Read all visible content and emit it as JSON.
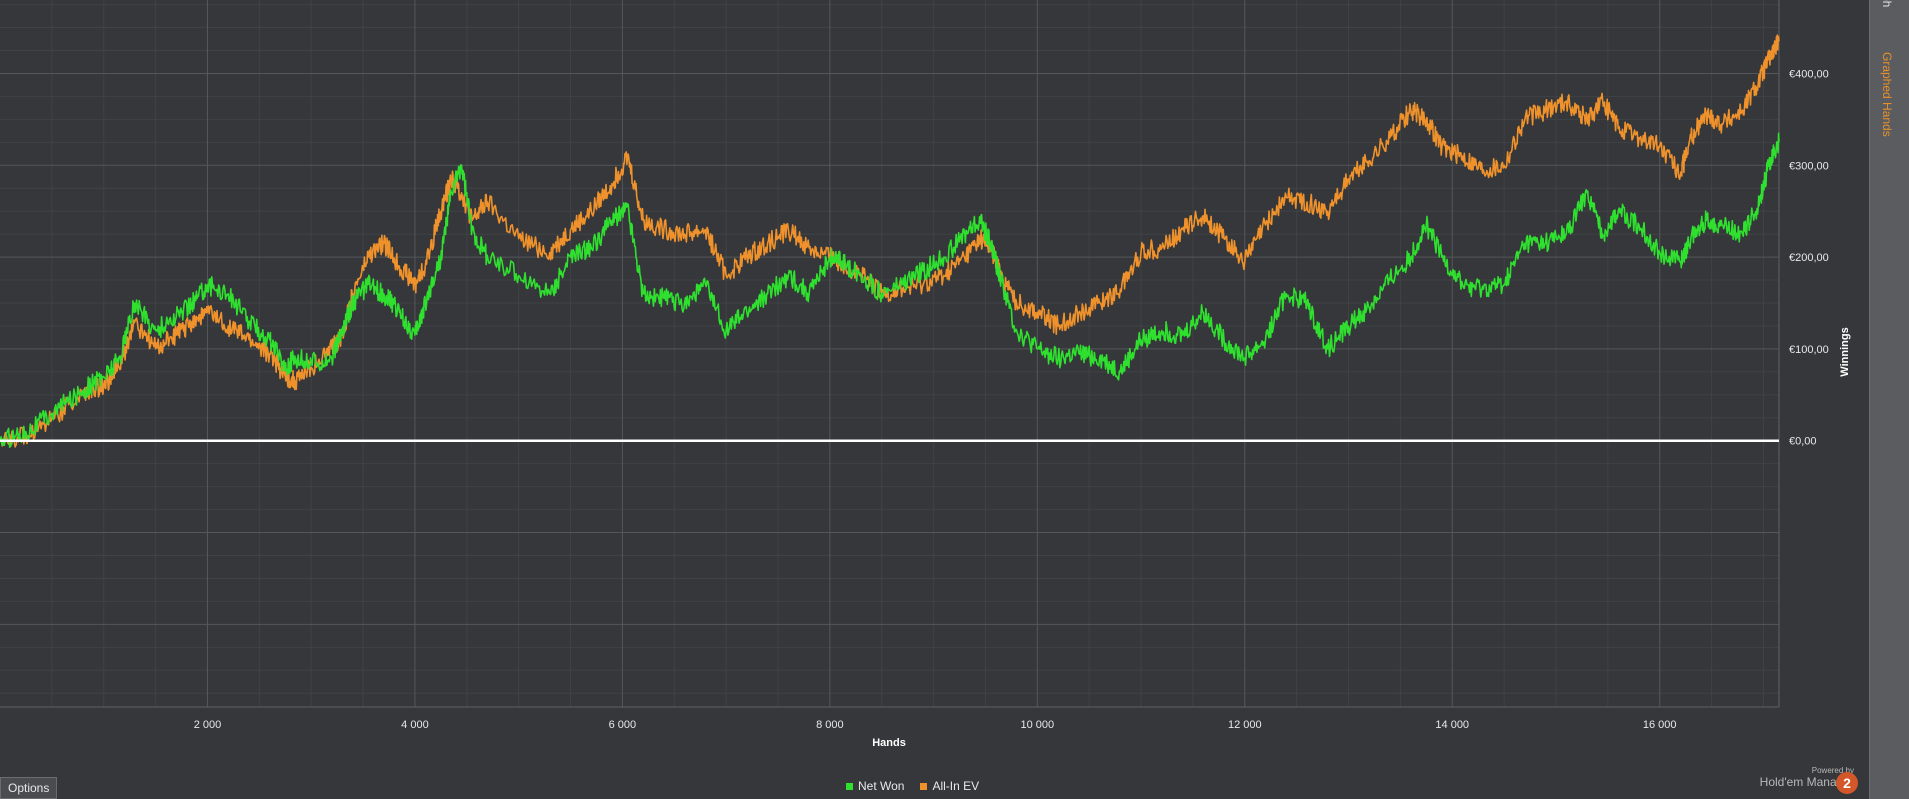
{
  "side_tabs": {
    "graph": "ph",
    "graphed_hands": "Graphed Hands"
  },
  "options_label": "Options",
  "powered": {
    "small": "Powered by",
    "brand": "Hold'em Manager",
    "logo": "2"
  },
  "colors": {
    "background": "#35373a",
    "net_won": "#2fe02f",
    "all_in_ev": "#f0922c",
    "zero_line": "#ffffff",
    "grid": "#55575b"
  },
  "chart_data": {
    "type": "line",
    "xlabel": "Hands",
    "ylabel": "Winnings",
    "xlim": [
      0,
      17150
    ],
    "ylim": [
      -290,
      480
    ],
    "grid": true,
    "x_ticks": [
      2000,
      4000,
      6000,
      8000,
      10000,
      12000,
      14000,
      16000
    ],
    "x_tick_labels": [
      "2 000",
      "4 000",
      "6 000",
      "8 000",
      "10 000",
      "12 000",
      "14 000",
      "16 000"
    ],
    "y_ticks": [
      0,
      100,
      200,
      300,
      400
    ],
    "y_tick_labels": [
      "€0,00",
      "€100,00",
      "€200,00",
      "€300,00",
      "€400,00"
    ],
    "legend_position": "bottom-center",
    "series": [
      {
        "name": "Net Won",
        "color": "#2fe02f",
        "x": [
          0,
          250,
          500,
          800,
          1000,
          1150,
          1300,
          1500,
          1700,
          1850,
          2000,
          2200,
          2400,
          2600,
          2750,
          2850,
          3000,
          3200,
          3300,
          3400,
          3550,
          3700,
          3850,
          4000,
          4100,
          4250,
          4350,
          4450,
          4550,
          4700,
          5000,
          5300,
          5500,
          5700,
          5900,
          6050,
          6200,
          6400,
          6600,
          6800,
          7000,
          7200,
          7400,
          7600,
          7800,
          8000,
          8100,
          8300,
          8500,
          8700,
          8900,
          9100,
          9300,
          9450,
          9550,
          9650,
          9800,
          10000,
          10200,
          10400,
          10600,
          10800,
          11000,
          11200,
          11400,
          11600,
          11800,
          12000,
          12200,
          12400,
          12600,
          12800,
          13000,
          13200,
          13400,
          13600,
          13750,
          13900,
          14100,
          14300,
          14500,
          14700,
          14900,
          15100,
          15300,
          15450,
          15600,
          15800,
          16000,
          16200,
          16300,
          16450,
          16600,
          16800,
          16950,
          17050,
          17150
        ],
        "y": [
          0,
          10,
          30,
          55,
          70,
          90,
          150,
          120,
          135,
          150,
          170,
          160,
          130,
          110,
          80,
          90,
          85,
          90,
          120,
          150,
          170,
          160,
          140,
          115,
          150,
          200,
          270,
          300,
          230,
          200,
          180,
          160,
          200,
          210,
          240,
          255,
          160,
          155,
          150,
          170,
          120,
          140,
          160,
          180,
          160,
          200,
          195,
          180,
          160,
          170,
          185,
          200,
          225,
          240,
          215,
          175,
          120,
          100,
          90,
          95,
          90,
          75,
          110,
          120,
          115,
          140,
          110,
          90,
          110,
          160,
          150,
          100,
          125,
          145,
          175,
          200,
          235,
          200,
          170,
          165,
          170,
          215,
          215,
          225,
          270,
          225,
          250,
          235,
          205,
          195,
          220,
          240,
          235,
          225,
          255,
          300,
          325
        ]
      },
      {
        "name": "All-In EV",
        "color": "#f0922c",
        "x": [
          0,
          250,
          500,
          800,
          1000,
          1150,
          1300,
          1500,
          1700,
          1850,
          2000,
          2200,
          2400,
          2600,
          2750,
          2850,
          3000,
          3200,
          3300,
          3400,
          3550,
          3700,
          3850,
          4000,
          4100,
          4250,
          4350,
          4450,
          4550,
          4700,
          5000,
          5300,
          5500,
          5700,
          5900,
          6050,
          6200,
          6400,
          6600,
          6800,
          7000,
          7200,
          7400,
          7600,
          7800,
          8000,
          8100,
          8300,
          8500,
          8700,
          8900,
          9100,
          9300,
          9450,
          9550,
          9650,
          9800,
          10000,
          10200,
          10400,
          10600,
          10800,
          11000,
          11200,
          11400,
          11600,
          11800,
          12000,
          12200,
          12400,
          12600,
          12800,
          13000,
          13200,
          13400,
          13600,
          13750,
          13900,
          14100,
          14300,
          14500,
          14700,
          14900,
          15100,
          15300,
          15450,
          15600,
          15800,
          16000,
          16200,
          16300,
          16450,
          16600,
          16800,
          16950,
          17050,
          17150
        ],
        "y": [
          0,
          5,
          25,
          50,
          60,
          80,
          130,
          100,
          115,
          130,
          140,
          125,
          110,
          95,
          70,
          65,
          80,
          100,
          115,
          160,
          200,
          215,
          190,
          170,
          190,
          250,
          285,
          270,
          240,
          260,
          220,
          205,
          230,
          250,
          280,
          310,
          240,
          230,
          225,
          230,
          180,
          200,
          215,
          230,
          210,
          200,
          195,
          180,
          160,
          165,
          170,
          180,
          200,
          220,
          210,
          180,
          150,
          140,
          125,
          140,
          150,
          165,
          205,
          210,
          230,
          245,
          220,
          195,
          235,
          265,
          260,
          250,
          285,
          305,
          330,
          360,
          350,
          320,
          310,
          295,
          300,
          350,
          360,
          370,
          350,
          370,
          340,
          330,
          320,
          290,
          330,
          355,
          345,
          360,
          390,
          415,
          435
        ]
      }
    ]
  }
}
